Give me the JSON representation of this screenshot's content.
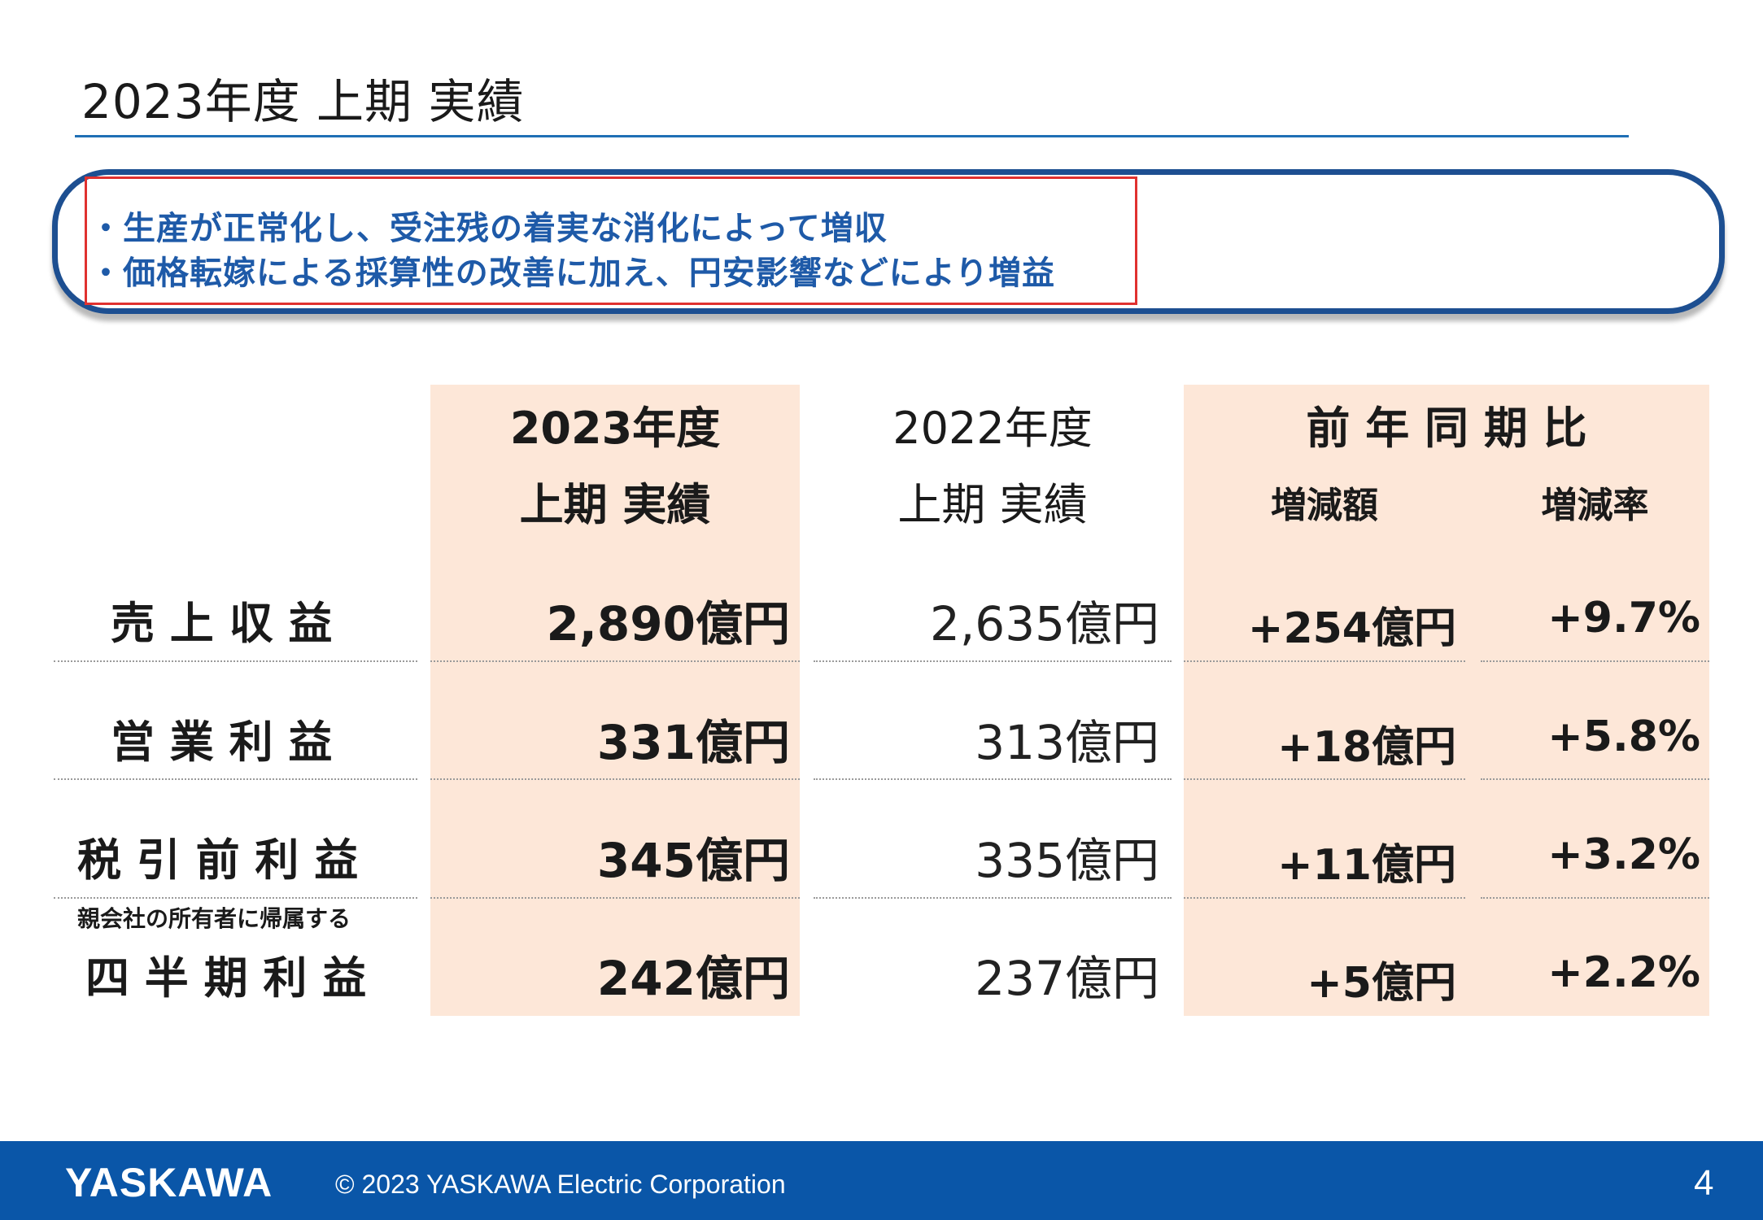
{
  "slide": {
    "title": "2023年度 上期 実績",
    "page_number": "4"
  },
  "summary": {
    "lines": [
      "・生産が正常化し、受注残の着実な消化によって増収",
      "・価格転嫁による採算性の改善に加え、円安影響などにより増益"
    ]
  },
  "table": {
    "headers": {
      "current_year": "2023年度",
      "current_period": "上期 実績",
      "prev_year": "2022年度",
      "prev_period": "上期 実績",
      "yoy": "前 年 同 期 比",
      "change_amount": "増減額",
      "change_rate": "増減率"
    },
    "rows": [
      {
        "label": "売 上 収 益",
        "sublabel": "",
        "current": "2,890億円",
        "prev": "2,635億円",
        "change": "+254億円",
        "rate": "+9.7%"
      },
      {
        "label": "営 業 利 益",
        "sublabel": "",
        "current": "331億円",
        "prev": "313億円",
        "change": "+18億円",
        "rate": "+5.8%"
      },
      {
        "label": "税 引 前 利 益",
        "sublabel": "",
        "current": "345億円",
        "prev": "335億円",
        "change": "+11億円",
        "rate": "+3.2%"
      },
      {
        "label": "四 半 期 利 益",
        "sublabel": "親会社の所有者に帰属する",
        "current": "242億円",
        "prev": "237億円",
        "change": "+5億円",
        "rate": "+2.2%"
      }
    ]
  },
  "footer": {
    "logo": "YASKAWA",
    "copyright": "© 2023 YASKAWA Electric Corporation"
  },
  "colors": {
    "accent_blue": "#1e5aa8",
    "footer_blue": "#0a56a8",
    "highlight_red": "#e0312f",
    "shade": "#fde7d8"
  }
}
